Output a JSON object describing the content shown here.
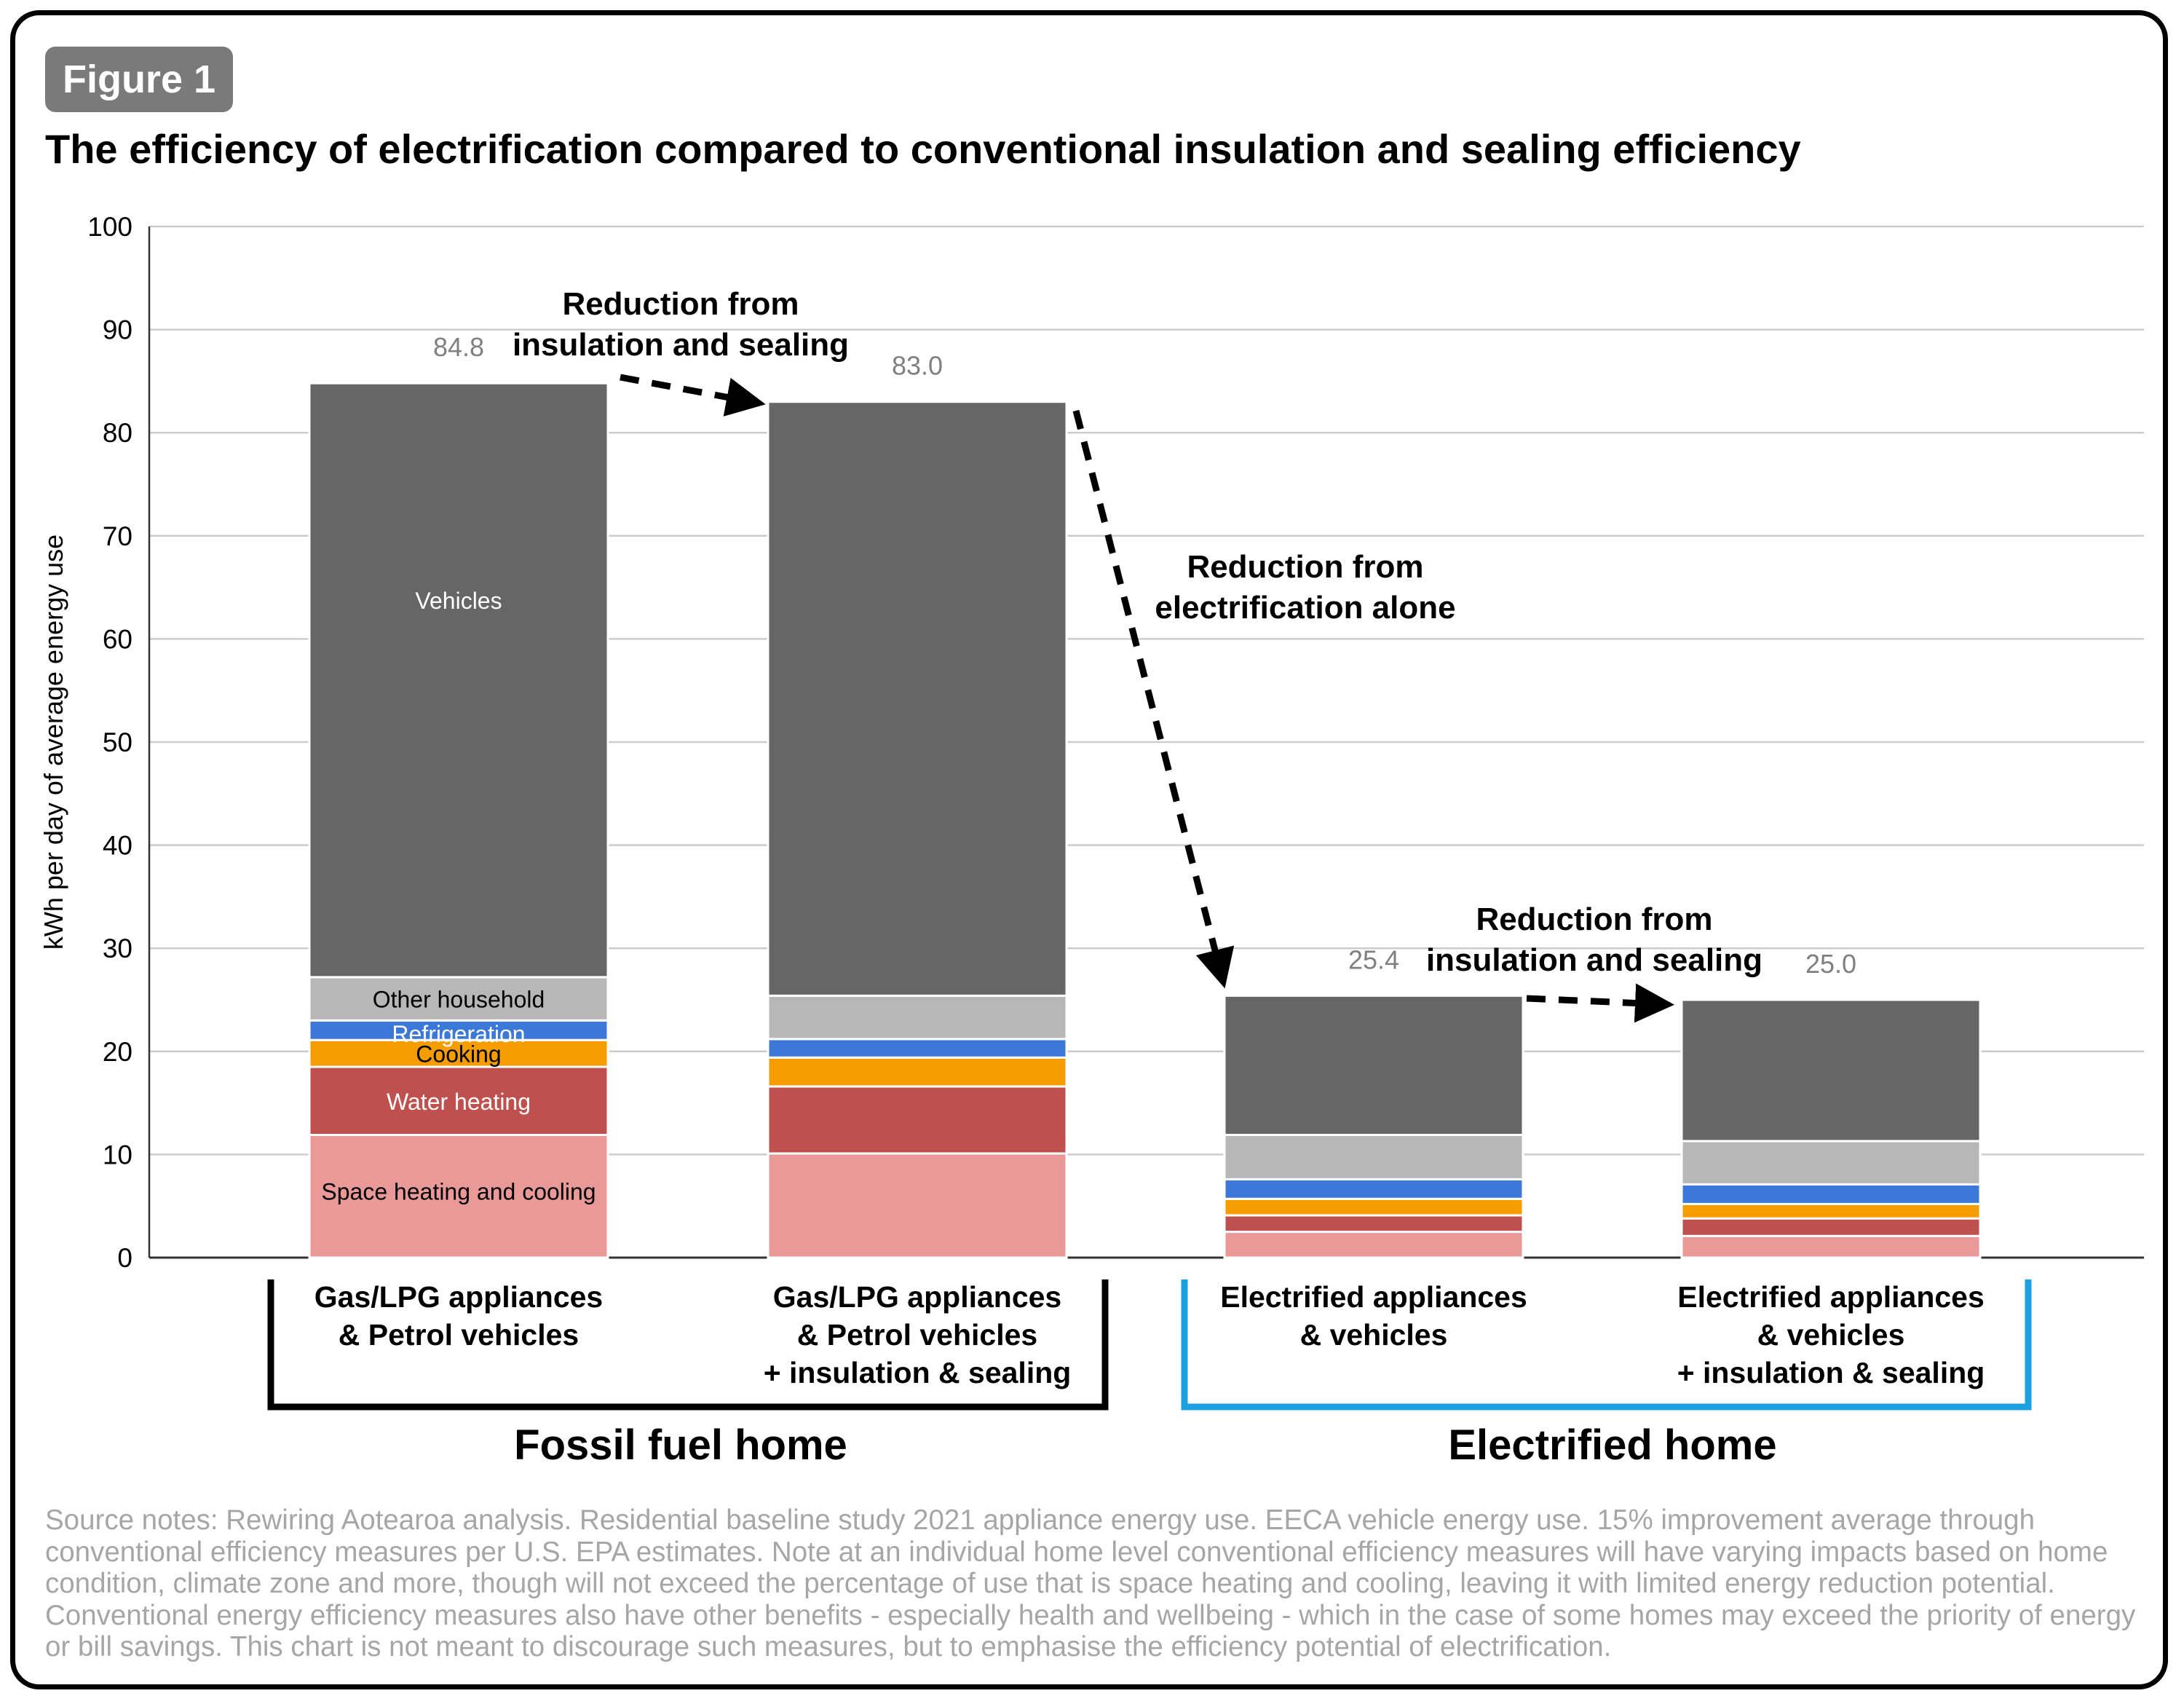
{
  "figure_label": "Figure 1",
  "title": "The efficiency of electrification compared to conventional insulation and sealing efficiency",
  "source_notes": "Source notes: Rewiring Aotearoa analysis. Residential baseline study 2021 appliance energy use. EECA vehicle energy use. 15% improvement average through conventional efficiency measures per U.S. EPA estimates. Note at an individual home level conventional efficiency measures will have varying impacts based on home condition, climate zone and more, though will not exceed the percentage of use that is space heating and cooling, leaving it with limited energy reduction potential. Conventional energy efficiency measures also have other benefits - especially health and wellbeing - which in the case of some homes may exceed the priority of energy or bill savings. This chart is not meant to discourage such measures, but to emphasise the efficiency potential of electrification.",
  "chart_data": {
    "type": "bar",
    "stacked": true,
    "title": "The efficiency of electrification compared to conventional insulation and sealing efficiency",
    "xlabel": "",
    "ylabel": "kWh per day of average energy use",
    "ylim": [
      0,
      100
    ],
    "yticks": [
      0,
      10,
      20,
      30,
      40,
      50,
      60,
      70,
      80,
      90,
      100
    ],
    "grid": true,
    "categories": [
      [
        "Gas/LPG appliances",
        "& Petrol vehicles"
      ],
      [
        "Gas/LPG appliances",
        "& Petrol vehicles",
        "+ insulation & sealing"
      ],
      [
        "Electrified appliances",
        "& vehicles"
      ],
      [
        "Electrified appliances",
        "& vehicles",
        "+ insulation & sealing"
      ]
    ],
    "totals": [
      "84.8",
      "83.0",
      "25.4",
      "25.0"
    ],
    "series": [
      {
        "name": "Space heating and cooling",
        "color": "#ea9999",
        "label_color": "#000000",
        "values": [
          11.9,
          10.1,
          2.5,
          2.1
        ]
      },
      {
        "name": "Water heating",
        "color": "#c0504d",
        "label_color": "#ffffff",
        "values": [
          6.6,
          6.5,
          1.6,
          1.7
        ]
      },
      {
        "name": "Cooking",
        "color": "#f59c00",
        "label_color": "#000000",
        "values": [
          2.6,
          2.8,
          1.6,
          1.4
        ]
      },
      {
        "name": "Refrigeration",
        "color": "#3c78d8",
        "label_color": "#ffffff",
        "values": [
          1.9,
          1.8,
          1.9,
          1.9
        ]
      },
      {
        "name": "Other household",
        "color": "#b7b7b7",
        "label_color": "#000000",
        "values": [
          4.2,
          4.2,
          4.3,
          4.2
        ]
      },
      {
        "name": "Vehicles",
        "color": "#666666",
        "label_color": "#ffffff",
        "values": [
          57.6,
          57.6,
          13.5,
          13.7
        ]
      }
    ],
    "annotations": [
      {
        "text": [
          "Reduction from",
          "insulation and sealing"
        ],
        "from_bar": 0,
        "to_bar": 1
      },
      {
        "text": [
          "Reduction from",
          "electrification alone"
        ],
        "from_bar": 1,
        "to_bar": 2
      },
      {
        "text": [
          "Reduction from",
          "insulation and sealing"
        ],
        "from_bar": 2,
        "to_bar": 3
      }
    ],
    "groups": [
      {
        "label": "Fossil fuel home",
        "bars": [
          0,
          1
        ],
        "color": "#000000"
      },
      {
        "label": "Electrified home",
        "bars": [
          2,
          3
        ],
        "color": "#1ba1e2"
      }
    ]
  }
}
